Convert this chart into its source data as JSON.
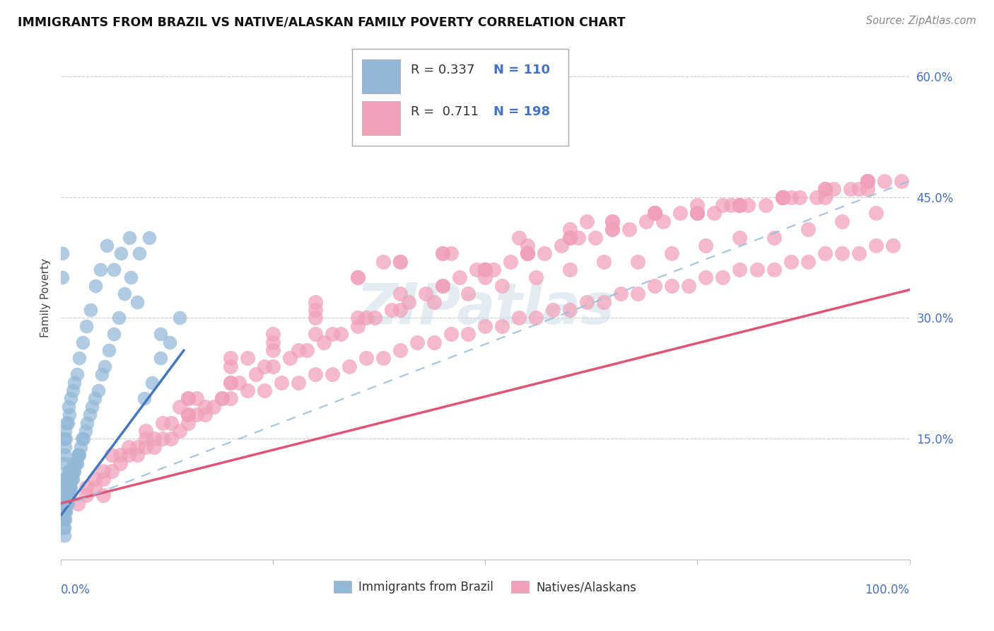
{
  "title": "IMMIGRANTS FROM BRAZIL VS NATIVE/ALASKAN FAMILY POVERTY CORRELATION CHART",
  "source": "Source: ZipAtlas.com",
  "ylabel": "Family Poverty",
  "legend_label1": "Immigrants from Brazil",
  "legend_label2": "Natives/Alaskans",
  "r1": "0.337",
  "n1": "110",
  "r2": "0.711",
  "n2": "198",
  "color_blue": "#92b8d8",
  "color_pink": "#f0a0b8",
  "color_line_blue": "#4477bb",
  "color_line_pink": "#e05575",
  "color_line_blue_dash": "#99bbdd",
  "ytick_labels": [
    "15.0%",
    "30.0%",
    "45.0%",
    "60.0%"
  ],
  "ytick_values": [
    0.15,
    0.3,
    0.45,
    0.6
  ],
  "xlim": [
    0,
    1.0
  ],
  "ylim": [
    0,
    0.65
  ],
  "brazil_x": [
    0.002,
    0.002,
    0.002,
    0.002,
    0.003,
    0.003,
    0.003,
    0.003,
    0.003,
    0.003,
    0.004,
    0.004,
    0.004,
    0.004,
    0.004,
    0.004,
    0.004,
    0.005,
    0.005,
    0.005,
    0.005,
    0.005,
    0.005,
    0.006,
    0.006,
    0.006,
    0.006,
    0.006,
    0.007,
    0.007,
    0.007,
    0.007,
    0.008,
    0.008,
    0.008,
    0.008,
    0.009,
    0.009,
    0.009,
    0.01,
    0.01,
    0.01,
    0.011,
    0.011,
    0.012,
    0.012,
    0.013,
    0.013,
    0.014,
    0.015,
    0.015,
    0.016,
    0.017,
    0.018,
    0.019,
    0.02,
    0.021,
    0.022,
    0.023,
    0.025,
    0.027,
    0.029,
    0.031,
    0.034,
    0.037,
    0.04,
    0.044,
    0.048,
    0.052,
    0.057,
    0.062,
    0.068,
    0.075,
    0.082,
    0.09,
    0.098,
    0.107,
    0.117,
    0.128,
    0.14,
    0.002,
    0.002,
    0.003,
    0.003,
    0.004,
    0.004,
    0.005,
    0.005,
    0.006,
    0.007,
    0.008,
    0.009,
    0.01,
    0.012,
    0.014,
    0.016,
    0.019,
    0.022,
    0.026,
    0.03,
    0.035,
    0.041,
    0.047,
    0.054,
    0.062,
    0.071,
    0.081,
    0.092,
    0.104,
    0.117
  ],
  "brazil_y": [
    0.05,
    0.06,
    0.07,
    0.08,
    0.04,
    0.05,
    0.06,
    0.07,
    0.08,
    0.09,
    0.03,
    0.04,
    0.05,
    0.06,
    0.07,
    0.08,
    0.09,
    0.05,
    0.06,
    0.07,
    0.08,
    0.09,
    0.1,
    0.06,
    0.07,
    0.08,
    0.09,
    0.1,
    0.07,
    0.08,
    0.09,
    0.1,
    0.07,
    0.08,
    0.09,
    0.11,
    0.08,
    0.09,
    0.1,
    0.08,
    0.09,
    0.11,
    0.09,
    0.1,
    0.09,
    0.11,
    0.1,
    0.11,
    0.1,
    0.11,
    0.12,
    0.11,
    0.12,
    0.12,
    0.12,
    0.13,
    0.13,
    0.13,
    0.14,
    0.15,
    0.15,
    0.16,
    0.17,
    0.18,
    0.19,
    0.2,
    0.21,
    0.23,
    0.24,
    0.26,
    0.28,
    0.3,
    0.33,
    0.35,
    0.32,
    0.2,
    0.22,
    0.25,
    0.27,
    0.3,
    0.35,
    0.38,
    0.1,
    0.12,
    0.13,
    0.15,
    0.14,
    0.16,
    0.15,
    0.17,
    0.17,
    0.19,
    0.18,
    0.2,
    0.21,
    0.22,
    0.23,
    0.25,
    0.27,
    0.29,
    0.31,
    0.34,
    0.36,
    0.39,
    0.36,
    0.38,
    0.4,
    0.38,
    0.4,
    0.28
  ],
  "native_x": [
    0.02,
    0.03,
    0.04,
    0.05,
    0.06,
    0.07,
    0.08,
    0.09,
    0.1,
    0.11,
    0.12,
    0.13,
    0.14,
    0.15,
    0.16,
    0.17,
    0.18,
    0.19,
    0.2,
    0.22,
    0.24,
    0.26,
    0.28,
    0.3,
    0.32,
    0.34,
    0.36,
    0.38,
    0.4,
    0.42,
    0.44,
    0.46,
    0.48,
    0.5,
    0.52,
    0.54,
    0.56,
    0.58,
    0.6,
    0.62,
    0.64,
    0.66,
    0.68,
    0.7,
    0.72,
    0.74,
    0.76,
    0.78,
    0.8,
    0.82,
    0.84,
    0.86,
    0.88,
    0.9,
    0.92,
    0.94,
    0.96,
    0.98,
    0.03,
    0.05,
    0.07,
    0.09,
    0.11,
    0.13,
    0.15,
    0.17,
    0.19,
    0.21,
    0.23,
    0.25,
    0.27,
    0.29,
    0.31,
    0.33,
    0.35,
    0.37,
    0.39,
    0.41,
    0.43,
    0.45,
    0.47,
    0.49,
    0.51,
    0.53,
    0.55,
    0.57,
    0.59,
    0.61,
    0.63,
    0.65,
    0.67,
    0.69,
    0.71,
    0.73,
    0.75,
    0.77,
    0.79,
    0.81,
    0.83,
    0.85,
    0.87,
    0.89,
    0.91,
    0.93,
    0.95,
    0.97,
    0.04,
    0.08,
    0.12,
    0.16,
    0.2,
    0.24,
    0.28,
    0.32,
    0.36,
    0.4,
    0.44,
    0.48,
    0.52,
    0.56,
    0.6,
    0.64,
    0.68,
    0.72,
    0.76,
    0.8,
    0.84,
    0.88,
    0.92,
    0.96,
    0.06,
    0.14,
    0.22,
    0.3,
    0.38,
    0.46,
    0.54,
    0.62,
    0.7,
    0.78,
    0.86,
    0.94,
    0.1,
    0.2,
    0.3,
    0.4,
    0.5,
    0.6,
    0.7,
    0.8,
    0.9,
    0.99,
    0.15,
    0.35,
    0.55,
    0.75,
    0.95,
    0.25,
    0.45,
    0.65,
    0.85,
    0.05,
    0.5,
    0.9,
    0.65,
    0.75,
    0.85,
    0.95,
    0.55,
    0.7,
    0.8,
    0.6,
    0.4,
    0.35,
    0.45,
    0.2,
    0.25,
    0.3,
    0.1,
    0.15,
    0.55,
    0.65,
    0.5,
    0.7,
    0.4,
    0.8,
    0.9,
    0.6,
    0.45,
    0.75,
    0.85,
    0.95,
    0.25,
    0.3,
    0.2,
    0.35,
    0.15,
    0.5
  ],
  "native_y": [
    0.07,
    0.08,
    0.09,
    0.1,
    0.11,
    0.12,
    0.13,
    0.13,
    0.14,
    0.14,
    0.15,
    0.15,
    0.16,
    0.17,
    0.18,
    0.18,
    0.19,
    0.2,
    0.2,
    0.21,
    0.21,
    0.22,
    0.22,
    0.23,
    0.23,
    0.24,
    0.25,
    0.25,
    0.26,
    0.27,
    0.27,
    0.28,
    0.28,
    0.29,
    0.29,
    0.3,
    0.3,
    0.31,
    0.31,
    0.32,
    0.32,
    0.33,
    0.33,
    0.34,
    0.34,
    0.34,
    0.35,
    0.35,
    0.36,
    0.36,
    0.36,
    0.37,
    0.37,
    0.38,
    0.38,
    0.38,
    0.39,
    0.39,
    0.09,
    0.11,
    0.13,
    0.14,
    0.15,
    0.17,
    0.18,
    0.19,
    0.2,
    0.22,
    0.23,
    0.24,
    0.25,
    0.26,
    0.27,
    0.28,
    0.29,
    0.3,
    0.31,
    0.32,
    0.33,
    0.34,
    0.35,
    0.36,
    0.36,
    0.37,
    0.38,
    0.38,
    0.39,
    0.4,
    0.4,
    0.41,
    0.41,
    0.42,
    0.42,
    0.43,
    0.43,
    0.43,
    0.44,
    0.44,
    0.44,
    0.45,
    0.45,
    0.45,
    0.46,
    0.46,
    0.46,
    0.47,
    0.1,
    0.14,
    0.17,
    0.2,
    0.22,
    0.24,
    0.26,
    0.28,
    0.3,
    0.31,
    0.32,
    0.33,
    0.34,
    0.35,
    0.36,
    0.37,
    0.37,
    0.38,
    0.39,
    0.4,
    0.4,
    0.41,
    0.42,
    0.43,
    0.13,
    0.19,
    0.25,
    0.31,
    0.37,
    0.38,
    0.4,
    0.42,
    0.43,
    0.44,
    0.45,
    0.46,
    0.16,
    0.22,
    0.28,
    0.33,
    0.36,
    0.4,
    0.43,
    0.44,
    0.46,
    0.47,
    0.2,
    0.3,
    0.38,
    0.43,
    0.47,
    0.26,
    0.34,
    0.42,
    0.45,
    0.08,
    0.35,
    0.45,
    0.42,
    0.44,
    0.45,
    0.47,
    0.39,
    0.43,
    0.44,
    0.41,
    0.37,
    0.35,
    0.38,
    0.24,
    0.27,
    0.3,
    0.15,
    0.18,
    0.38,
    0.41,
    0.36,
    0.43,
    0.37,
    0.44,
    0.46,
    0.4,
    0.38,
    0.43,
    0.45,
    0.47,
    0.28,
    0.32,
    0.25,
    0.35,
    0.2,
    0.36
  ],
  "brazil_r_line_x0": 0.0,
  "brazil_r_line_x1": 0.145,
  "brazil_r_line_y0": 0.055,
  "brazil_r_line_y1": 0.26,
  "native_r_line_x0": 0.0,
  "native_r_line_x1": 1.0,
  "native_r_line_y0": 0.07,
  "native_r_line_y1": 0.335,
  "native_dash_line_x0": 0.0,
  "native_dash_line_x1": 1.0,
  "native_dash_line_y0": 0.065,
  "native_dash_line_y1": 0.47
}
